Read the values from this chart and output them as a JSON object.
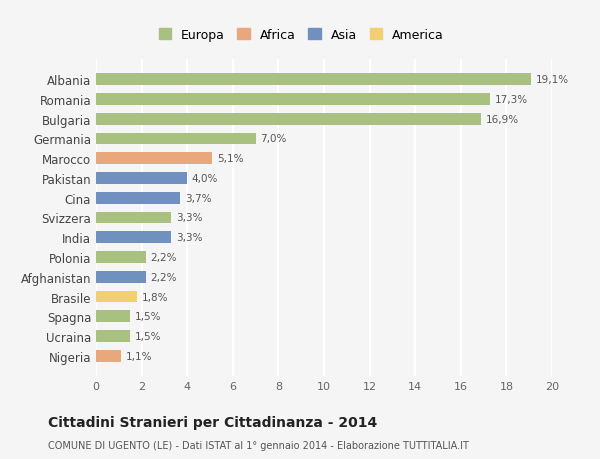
{
  "countries": [
    "Albania",
    "Romania",
    "Bulgaria",
    "Germania",
    "Marocco",
    "Pakistan",
    "Cina",
    "Svizzera",
    "India",
    "Polonia",
    "Afghanistan",
    "Brasile",
    "Spagna",
    "Ucraina",
    "Nigeria"
  ],
  "values": [
    19.1,
    17.3,
    16.9,
    7.0,
    5.1,
    4.0,
    3.7,
    3.3,
    3.3,
    2.2,
    2.2,
    1.8,
    1.5,
    1.5,
    1.1
  ],
  "labels": [
    "19,1%",
    "17,3%",
    "16,9%",
    "7,0%",
    "5,1%",
    "4,0%",
    "3,7%",
    "3,3%",
    "3,3%",
    "2,2%",
    "2,2%",
    "1,8%",
    "1,5%",
    "1,5%",
    "1,1%"
  ],
  "continents": [
    "Europa",
    "Europa",
    "Europa",
    "Europa",
    "Africa",
    "Asia",
    "Asia",
    "Europa",
    "Asia",
    "Europa",
    "Asia",
    "America",
    "Europa",
    "Europa",
    "Africa"
  ],
  "colors": {
    "Europa": "#a8c080",
    "Africa": "#e8a87c",
    "Asia": "#7090c0",
    "America": "#f0d070"
  },
  "legend_order": [
    "Europa",
    "Africa",
    "Asia",
    "America"
  ],
  "title": "Cittadini Stranieri per Cittadinanza - 2014",
  "subtitle": "COMUNE DI UGENTO (LE) - Dati ISTAT al 1° gennaio 2014 - Elaborazione TUTTITALIA.IT",
  "xlim": [
    0,
    20
  ],
  "xticks": [
    0,
    2,
    4,
    6,
    8,
    10,
    12,
    14,
    16,
    18,
    20
  ],
  "bg_color": "#f5f5f5",
  "grid_color": "#ffffff",
  "bar_height": 0.6
}
